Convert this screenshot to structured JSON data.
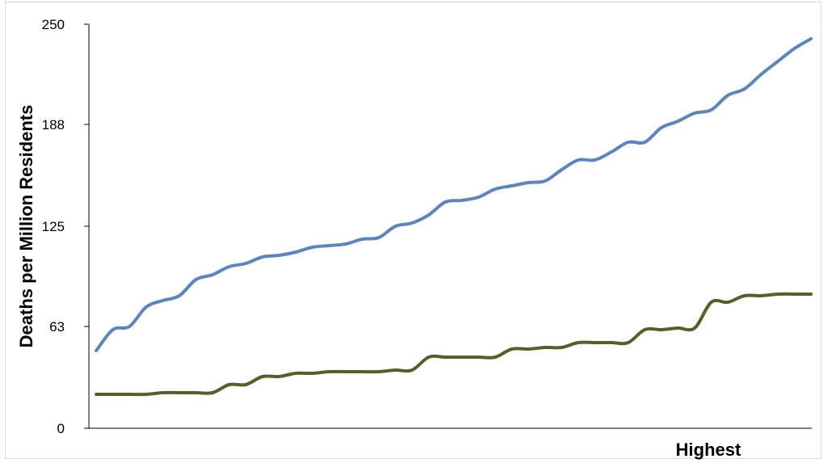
{
  "chart_data": {
    "type": "line",
    "title": "",
    "xlabel": "Highest",
    "ylabel": "Deaths per Million Residents",
    "ylim": [
      0,
      250
    ],
    "y_ticks": [
      "0",
      "63",
      "125",
      "188",
      "250"
    ],
    "y_tick_values": [
      0,
      63,
      125,
      188,
      250
    ],
    "grid": false,
    "x": [
      1,
      2,
      3,
      4,
      5,
      6,
      7,
      8,
      9,
      10,
      11,
      12,
      13,
      14,
      15,
      16,
      17,
      18,
      19,
      20,
      21,
      22,
      23,
      24,
      25,
      26,
      27,
      28,
      29,
      30,
      31,
      32,
      33,
      34,
      35,
      36,
      37,
      38,
      39,
      40,
      41,
      42,
      43,
      44
    ],
    "series": [
      {
        "color": "#5b84c1",
        "values": [
          48,
          61,
          63,
          75,
          79,
          82,
          92,
          95,
          100,
          102,
          106,
          107,
          109,
          112,
          113,
          114,
          117,
          118,
          125,
          127,
          132,
          140,
          141,
          143,
          148,
          150,
          152,
          153,
          160,
          166,
          166,
          171,
          177,
          177,
          186,
          190,
          195,
          197,
          206,
          210,
          219,
          227,
          235,
          241
        ]
      },
      {
        "color": "#4f6228",
        "values": [
          21,
          21,
          21,
          21,
          22,
          22,
          22,
          22,
          27,
          27,
          32,
          32,
          34,
          34,
          35,
          35,
          35,
          35,
          36,
          36,
          44,
          44,
          44,
          44,
          44,
          49,
          49,
          50,
          50,
          53,
          53,
          53,
          53,
          61,
          61,
          62,
          62,
          78,
          78,
          82,
          82,
          83,
          83,
          83
        ]
      }
    ]
  },
  "colors": {
    "axis": "#000000",
    "frame": "#d9d9d9"
  }
}
